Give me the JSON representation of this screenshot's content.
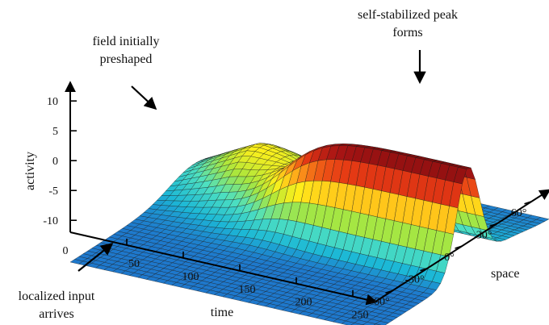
{
  "chart_data": {
    "type": "surface",
    "axes": {
      "x": {
        "label": "time",
        "ticks": [
          0,
          50,
          100,
          150,
          200,
          250
        ],
        "range": [
          0,
          270
        ]
      },
      "y": {
        "label": "space",
        "ticks": [
          "-60°",
          "-30°",
          "0°",
          "30°",
          "60°"
        ],
        "range": [
          -75,
          75
        ]
      },
      "z": {
        "label": "activity",
        "ticks": [
          10,
          5,
          0,
          -5,
          -10
        ],
        "range": [
          -12,
          13
        ]
      }
    },
    "surface": {
      "time": [
        0,
        270
      ],
      "space": [
        -75,
        75
      ],
      "resting_level": -5,
      "preshape_max": 4,
      "preshape_center_space": 32,
      "peak_max": 12,
      "peak_center_space": 5,
      "input_onset_time": 50,
      "colormap": [
        "#10109c",
        "#1f5ec8",
        "#1cb8d6",
        "#4ee0c0",
        "#a8e63e",
        "#ffef1a",
        "#ff9e1a",
        "#e63a14",
        "#a81414",
        "#6b0b0b"
      ]
    },
    "annotations": [
      {
        "id": "preshape",
        "lines": [
          "field initially",
          "preshaped"
        ]
      },
      {
        "id": "peak",
        "lines": [
          "self-stabilized peak",
          "forms"
        ]
      },
      {
        "id": "input",
        "lines": [
          "localized input",
          "arrives"
        ]
      }
    ]
  }
}
